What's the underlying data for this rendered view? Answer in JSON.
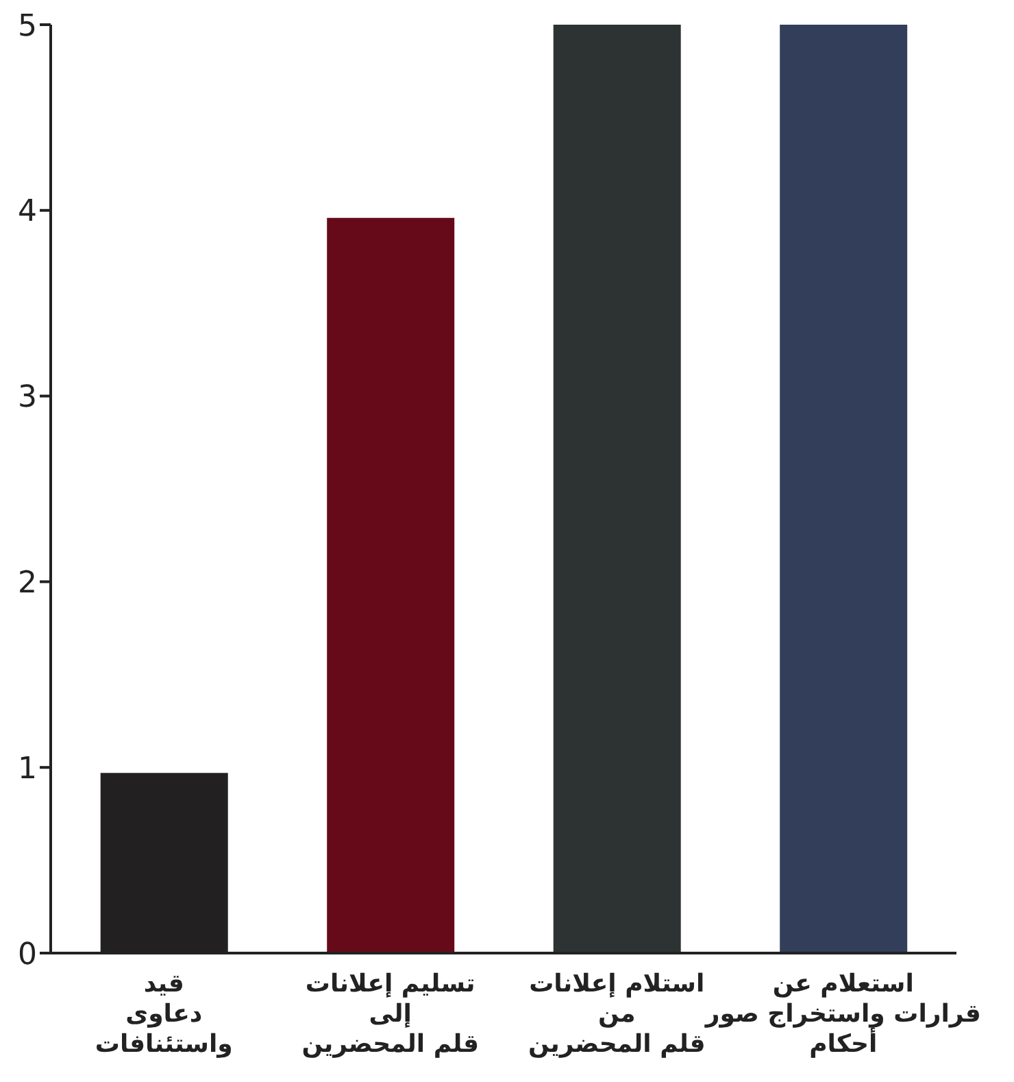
{
  "chart_data": {
    "type": "bar",
    "categories": [
      "قيد\nدعاوى\nواستئنافات",
      "تسليم  إعلانات\nإلى\nقلم المحضرين",
      "استلام  إعلانات\nمن\nقلم المحضرين",
      "استعلام عن\nقرارات  واستخراج صور\nأحكام"
    ],
    "values": [
      0.97,
      3.96,
      5,
      5
    ],
    "colors": [
      "#232021",
      "#660a1a",
      "#2d3232",
      "#333f5a"
    ],
    "ylim": [
      0,
      5
    ],
    "yticks": [
      0,
      1,
      2,
      3,
      4,
      5
    ],
    "grid": false,
    "legend": false
  }
}
